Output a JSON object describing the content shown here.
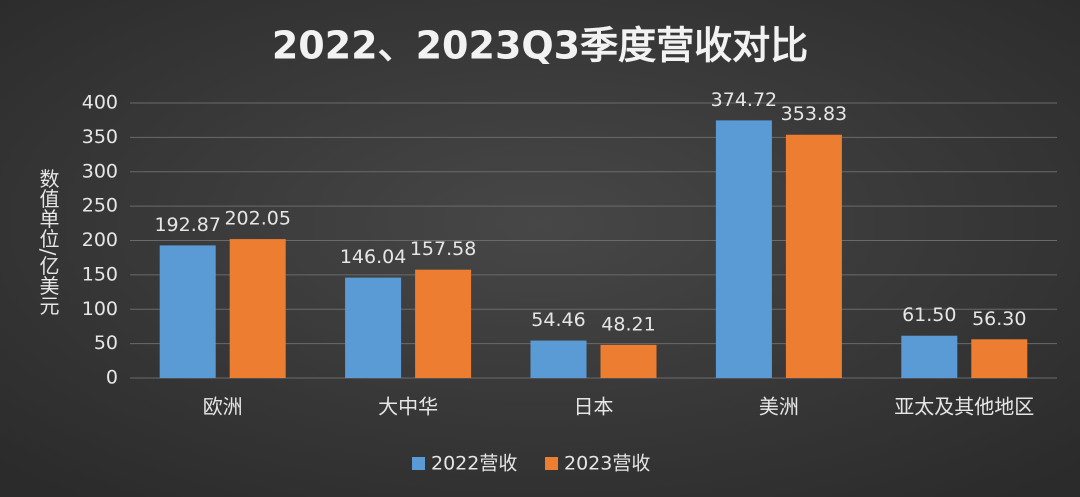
{
  "chart_data": {
    "type": "bar",
    "title": "2022、2023Q3季度营收对比",
    "y_label": "数值单位/亿美元",
    "categories": [
      "欧洲",
      "大中华",
      "日本",
      "美洲",
      "亚太及其他地区"
    ],
    "series": [
      {
        "name": "2022营收",
        "color": "#5b9bd5",
        "values": [
          192.87,
          146.04,
          54.46,
          374.72,
          61.5
        ],
        "value_labels": [
          "192.87",
          "146.04",
          "54.46",
          "374.72",
          "61.50"
        ]
      },
      {
        "name": "2023营收",
        "color": "#ed7d31",
        "values": [
          202.05,
          157.58,
          48.21,
          353.83,
          56.3
        ],
        "value_labels": [
          "202.05",
          "157.58",
          "48.21",
          "353.83",
          "56.30"
        ]
      }
    ],
    "ylim": [
      0,
      400
    ],
    "yticks": [
      0,
      50,
      100,
      150,
      200,
      250,
      300,
      350,
      400
    ],
    "grid": true,
    "legend": "bottom"
  }
}
